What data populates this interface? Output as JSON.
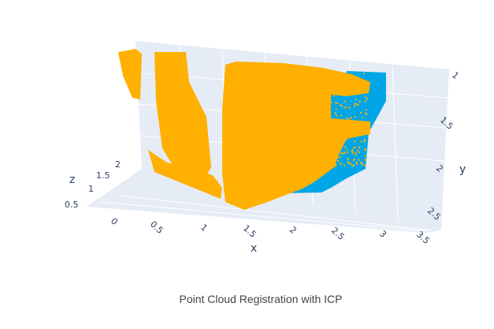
{
  "colors": {
    "source_cloud": "#00a6e6",
    "target_cloud": "#ffb000",
    "scene_bg": "#e5ecf6",
    "grid": "#ffffff",
    "tick_text": "#2a3f5f"
  },
  "caption": "Point Cloud Registration with ICP",
  "chart_data": {
    "type": "scatter3d",
    "title": "Point Cloud Registration with ICP",
    "xlabel": "x",
    "ylabel": "y",
    "zlabel": "z",
    "x_ticks": [
      "0",
      "0.5",
      "1",
      "1.5",
      "2",
      "2.5",
      "3",
      "3.5"
    ],
    "y_ticks": [
      "1",
      "1.5",
      "2",
      "2.5"
    ],
    "z_ticks": [
      "0.5",
      "1",
      "1.5",
      "2"
    ],
    "xlim": [
      -0.3,
      3.6
    ],
    "ylim": [
      0.9,
      2.7
    ],
    "zlim": [
      0.3,
      2.4
    ],
    "grid": true,
    "legend": "none",
    "series": [
      {
        "color": "#00a6e6"
      },
      {
        "color": "#ffb000"
      }
    ]
  }
}
